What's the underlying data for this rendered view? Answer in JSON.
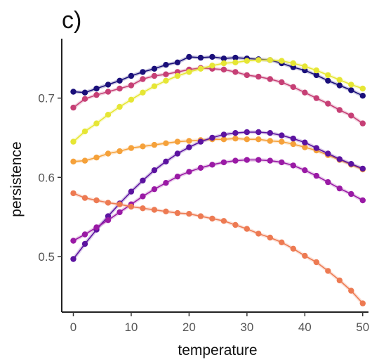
{
  "panel_label": "c)",
  "chart_data": {
    "type": "scatter",
    "xlabel": "temperature",
    "ylabel": "persistence",
    "xlim": [
      -2,
      51
    ],
    "ylim": [
      0.43,
      0.775
    ],
    "xticks": [
      0,
      10,
      20,
      30,
      40,
      50
    ],
    "yticks": [
      0.5,
      0.6,
      0.7
    ],
    "ytick_labels": [
      "0.5",
      "0.6",
      "0.7"
    ],
    "grid": false,
    "legend": "none",
    "series": [
      {
        "color": "#1a0f7a",
        "x": [
          0,
          2,
          4,
          6,
          8,
          10,
          12,
          14,
          16,
          18,
          20,
          22,
          24,
          26,
          28,
          30,
          32,
          34,
          36,
          38,
          40,
          42,
          44,
          46,
          48,
          50
        ],
        "y": [
          0.708,
          0.707,
          0.712,
          0.717,
          0.722,
          0.728,
          0.733,
          0.737,
          0.742,
          0.745,
          0.752,
          0.751,
          0.752,
          0.75,
          0.751,
          0.75,
          0.749,
          0.748,
          0.744,
          0.739,
          0.735,
          0.729,
          0.722,
          0.716,
          0.71,
          0.703
        ]
      },
      {
        "color": "#c63f75",
        "x": [
          0,
          2,
          4,
          6,
          8,
          10,
          12,
          14,
          16,
          18,
          20,
          22,
          24,
          26,
          28,
          30,
          32,
          34,
          36,
          38,
          40,
          42,
          44,
          46,
          48,
          50
        ],
        "y": [
          0.688,
          0.699,
          0.704,
          0.708,
          0.712,
          0.716,
          0.724,
          0.728,
          0.73,
          0.733,
          0.736,
          0.738,
          0.737,
          0.736,
          0.733,
          0.729,
          0.727,
          0.724,
          0.72,
          0.714,
          0.707,
          0.7,
          0.693,
          0.685,
          0.678,
          0.668
        ]
      },
      {
        "color": "#e6e634",
        "x": [
          0,
          2,
          4,
          6,
          8,
          10,
          12,
          14,
          16,
          18,
          20,
          22,
          24,
          26,
          28,
          30,
          32,
          34,
          36,
          38,
          40,
          42,
          44,
          46,
          48,
          50
        ],
        "y": [
          0.645,
          0.658,
          0.668,
          0.679,
          0.689,
          0.698,
          0.707,
          0.715,
          0.722,
          0.728,
          0.733,
          0.737,
          0.741,
          0.744,
          0.745,
          0.747,
          0.748,
          0.748,
          0.747,
          0.744,
          0.74,
          0.735,
          0.729,
          0.723,
          0.717,
          0.712
        ]
      },
      {
        "color": "#f5a13a",
        "x": [
          0,
          2,
          4,
          6,
          8,
          10,
          12,
          14,
          16,
          18,
          20,
          22,
          24,
          26,
          28,
          30,
          32,
          34,
          36,
          38,
          40,
          42,
          44,
          46,
          48,
          50
        ],
        "y": [
          0.62,
          0.621,
          0.625,
          0.63,
          0.633,
          0.637,
          0.639,
          0.641,
          0.643,
          0.645,
          0.646,
          0.647,
          0.648,
          0.648,
          0.649,
          0.648,
          0.648,
          0.646,
          0.645,
          0.642,
          0.638,
          0.634,
          0.628,
          0.622,
          0.616,
          0.61
        ]
      },
      {
        "color": "#5c13a0",
        "x": [
          0,
          2,
          4,
          6,
          8,
          10,
          12,
          14,
          16,
          18,
          20,
          22,
          24,
          26,
          28,
          30,
          32,
          34,
          36,
          38,
          40,
          42,
          44,
          46,
          48,
          50
        ],
        "y": [
          0.497,
          0.516,
          0.534,
          0.551,
          0.567,
          0.582,
          0.596,
          0.609,
          0.62,
          0.63,
          0.638,
          0.645,
          0.65,
          0.654,
          0.656,
          0.657,
          0.657,
          0.656,
          0.653,
          0.649,
          0.644,
          0.637,
          0.63,
          0.623,
          0.617,
          0.611
        ]
      },
      {
        "color": "#9a1aa5",
        "x": [
          0,
          2,
          4,
          6,
          8,
          10,
          12,
          14,
          16,
          18,
          20,
          22,
          24,
          26,
          28,
          30,
          32,
          34,
          36,
          38,
          40,
          42,
          44,
          46,
          48,
          50
        ],
        "y": [
          0.52,
          0.528,
          0.537,
          0.546,
          0.556,
          0.566,
          0.576,
          0.585,
          0.593,
          0.601,
          0.607,
          0.612,
          0.616,
          0.619,
          0.621,
          0.622,
          0.622,
          0.621,
          0.619,
          0.615,
          0.609,
          0.602,
          0.594,
          0.586,
          0.579,
          0.571
        ]
      },
      {
        "color": "#ed7a52",
        "x": [
          0,
          2,
          4,
          6,
          8,
          10,
          12,
          14,
          16,
          18,
          20,
          22,
          24,
          26,
          28,
          30,
          32,
          34,
          36,
          38,
          40,
          42,
          44,
          46,
          48,
          50
        ],
        "y": [
          0.58,
          0.574,
          0.571,
          0.568,
          0.566,
          0.563,
          0.561,
          0.559,
          0.557,
          0.555,
          0.554,
          0.551,
          0.548,
          0.545,
          0.54,
          0.535,
          0.529,
          0.524,
          0.518,
          0.51,
          0.501,
          0.493,
          0.482,
          0.47,
          0.457,
          0.441
        ]
      }
    ]
  }
}
